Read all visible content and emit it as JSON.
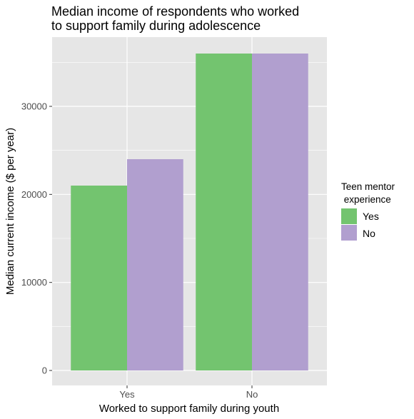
{
  "chart_data": {
    "type": "bar",
    "title_lines": [
      "Median income of respondents who worked",
      "to support family during adolescence"
    ],
    "xlabel": "Worked to support family during youth",
    "ylabel": "Median current income ($ per year)",
    "categories": [
      "Yes",
      "No"
    ],
    "series": [
      {
        "name": "Yes",
        "color": "#73c46f",
        "values": [
          21000,
          36000
        ]
      },
      {
        "name": "No",
        "color": "#b19fcf",
        "values": [
          24000,
          36000
        ]
      }
    ],
    "ylim": [
      0,
      37800
    ],
    "yticks": [
      0,
      10000,
      20000,
      30000
    ],
    "ytick_labels": [
      "0",
      "10000",
      "20000",
      "30000"
    ],
    "legend": {
      "title_lines": [
        "Teen mentor",
        " experience"
      ],
      "position": "right"
    },
    "grid": true,
    "panel_color": "#e6e6e6",
    "grid_color": "#ffffff"
  }
}
